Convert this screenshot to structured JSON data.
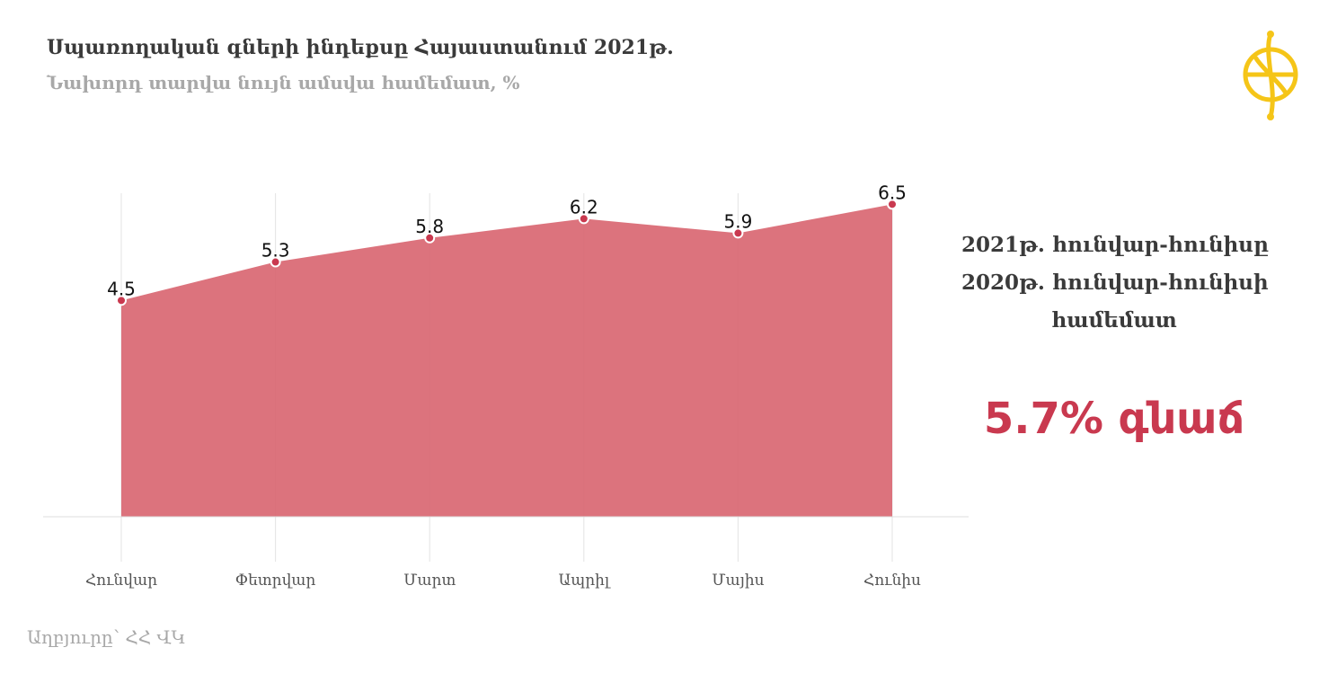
{
  "header": {
    "title": "Սպառողական գների ինդեքսը Հայաստանում  2021թ.",
    "subtitle": "Նախորդ տարվա նույն ամսվա համեմատ, %"
  },
  "summary": {
    "line1": "2021թ. հունվար-հունիսը",
    "line2": "2020թ. հունվար-հունիսի",
    "line3": "համեմատ",
    "value_text": "5.7% գնաճ"
  },
  "source": "Աղբյուրը՝ ՀՀ ՎԿ",
  "colors": {
    "area_fill": "#d8646f",
    "point_color": "#c9394f",
    "highlight": "#c9394f",
    "logo": "#f5c518"
  },
  "chart_data": {
    "type": "area",
    "categories": [
      "Հունվար",
      "Փետրվար",
      "Մարտ",
      "Ապրիլ",
      "Մայիս",
      "Հունիս"
    ],
    "values": [
      4.5,
      5.3,
      5.8,
      6.2,
      5.9,
      6.5
    ],
    "data_labels": [
      "4.5",
      "5.3",
      "5.8",
      "6.2",
      "5.9",
      "6.5"
    ],
    "title": "Սպառողական գների ինդեքսը Հայաստանում  2021թ.",
    "subtitle": "Նախորդ տարվա նույն ամսվա համեմատ, %",
    "xlabel": "",
    "ylabel": "",
    "ylim": [
      0,
      7
    ],
    "grid": "vertical",
    "legend": "none"
  }
}
